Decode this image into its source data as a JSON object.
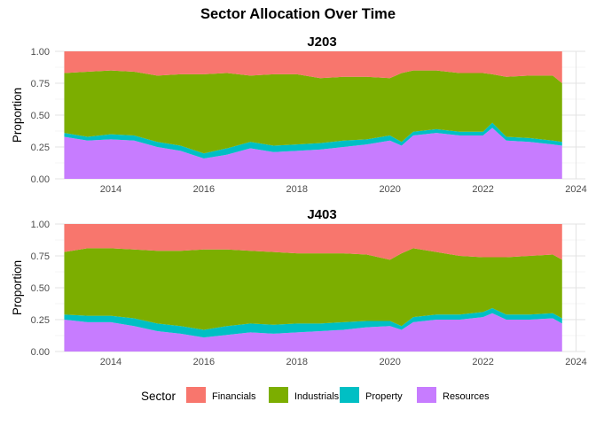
{
  "chart_data": {
    "type": "area",
    "title": "Sector Allocation Over Time",
    "legend": {
      "title": "Sector",
      "position": "bottom",
      "entries": [
        "Financials",
        "Industrials",
        "Property",
        "Resources"
      ]
    },
    "colors": {
      "Financials": "#F8766D",
      "Industrials": "#7CAE00",
      "Property": "#00BFC4",
      "Resources": "#C77CFF"
    },
    "stack_order_bottom_to_top": [
      "Resources",
      "Property",
      "Industrials",
      "Financials"
    ],
    "x_range": [
      2012.8,
      2024.2
    ],
    "x_ticks": [
      "2014",
      "2016",
      "2018",
      "2020",
      "2022",
      "2024"
    ],
    "y_range": [
      0,
      1
    ],
    "y_ticks": [
      "0.00",
      "0.25",
      "0.50",
      "0.75",
      "1.00"
    ],
    "grid": true,
    "panels": [
      {
        "title": "J203",
        "ylabel": "Proportion",
        "x": [
          2013.0,
          2013.5,
          2014.0,
          2014.5,
          2015.0,
          2015.5,
          2016.0,
          2016.5,
          2017.0,
          2017.5,
          2018.0,
          2018.5,
          2019.0,
          2019.5,
          2020.0,
          2020.25,
          2020.5,
          2021.0,
          2021.5,
          2022.0,
          2022.2,
          2022.5,
          2023.0,
          2023.5,
          2023.7
        ],
        "series": [
          {
            "name": "Resources",
            "values": [
              0.33,
              0.3,
              0.31,
              0.3,
              0.25,
              0.22,
              0.16,
              0.19,
              0.24,
              0.21,
              0.22,
              0.23,
              0.25,
              0.27,
              0.3,
              0.26,
              0.34,
              0.36,
              0.34,
              0.34,
              0.4,
              0.3,
              0.29,
              0.27,
              0.26
            ]
          },
          {
            "name": "Property",
            "values": [
              0.03,
              0.03,
              0.04,
              0.04,
              0.04,
              0.04,
              0.04,
              0.05,
              0.05,
              0.05,
              0.05,
              0.05,
              0.05,
              0.04,
              0.04,
              0.03,
              0.03,
              0.03,
              0.03,
              0.03,
              0.04,
              0.03,
              0.03,
              0.03,
              0.03
            ]
          },
          {
            "name": "Industrials",
            "values": [
              0.47,
              0.51,
              0.5,
              0.5,
              0.52,
              0.56,
              0.62,
              0.59,
              0.52,
              0.56,
              0.55,
              0.51,
              0.5,
              0.49,
              0.45,
              0.54,
              0.48,
              0.46,
              0.46,
              0.46,
              0.38,
              0.47,
              0.49,
              0.51,
              0.46
            ]
          },
          {
            "name": "Financials",
            "values": [
              0.17,
              0.16,
              0.15,
              0.16,
              0.19,
              0.18,
              0.18,
              0.17,
              0.19,
              0.18,
              0.18,
              0.21,
              0.2,
              0.2,
              0.21,
              0.17,
              0.15,
              0.15,
              0.17,
              0.17,
              0.18,
              0.2,
              0.19,
              0.19,
              0.25
            ]
          }
        ]
      },
      {
        "title": "J403",
        "ylabel": "Proportion",
        "x": [
          2013.0,
          2013.5,
          2014.0,
          2014.5,
          2015.0,
          2015.5,
          2016.0,
          2016.5,
          2017.0,
          2017.5,
          2018.0,
          2018.5,
          2019.0,
          2019.5,
          2020.0,
          2020.25,
          2020.5,
          2021.0,
          2021.5,
          2022.0,
          2022.2,
          2022.5,
          2023.0,
          2023.5,
          2023.7
        ],
        "series": [
          {
            "name": "Resources",
            "values": [
              0.25,
              0.23,
              0.23,
              0.2,
              0.16,
              0.14,
              0.11,
              0.13,
              0.15,
              0.14,
              0.15,
              0.16,
              0.17,
              0.19,
              0.2,
              0.17,
              0.23,
              0.25,
              0.25,
              0.27,
              0.3,
              0.25,
              0.25,
              0.26,
              0.22
            ]
          },
          {
            "name": "Property",
            "values": [
              0.04,
              0.05,
              0.05,
              0.06,
              0.06,
              0.06,
              0.06,
              0.07,
              0.07,
              0.07,
              0.07,
              0.06,
              0.06,
              0.05,
              0.04,
              0.03,
              0.04,
              0.04,
              0.04,
              0.04,
              0.04,
              0.04,
              0.04,
              0.04,
              0.04
            ]
          },
          {
            "name": "Industrials",
            "values": [
              0.49,
              0.53,
              0.53,
              0.54,
              0.57,
              0.59,
              0.63,
              0.6,
              0.57,
              0.57,
              0.55,
              0.55,
              0.54,
              0.52,
              0.48,
              0.57,
              0.54,
              0.49,
              0.46,
              0.43,
              0.4,
              0.45,
              0.46,
              0.46,
              0.46
            ]
          },
          {
            "name": "Financials",
            "values": [
              0.22,
              0.19,
              0.19,
              0.2,
              0.21,
              0.21,
              0.2,
              0.2,
              0.21,
              0.22,
              0.23,
              0.23,
              0.23,
              0.24,
              0.28,
              0.23,
              0.19,
              0.22,
              0.25,
              0.26,
              0.26,
              0.26,
              0.25,
              0.24,
              0.28
            ]
          }
        ]
      }
    ]
  }
}
